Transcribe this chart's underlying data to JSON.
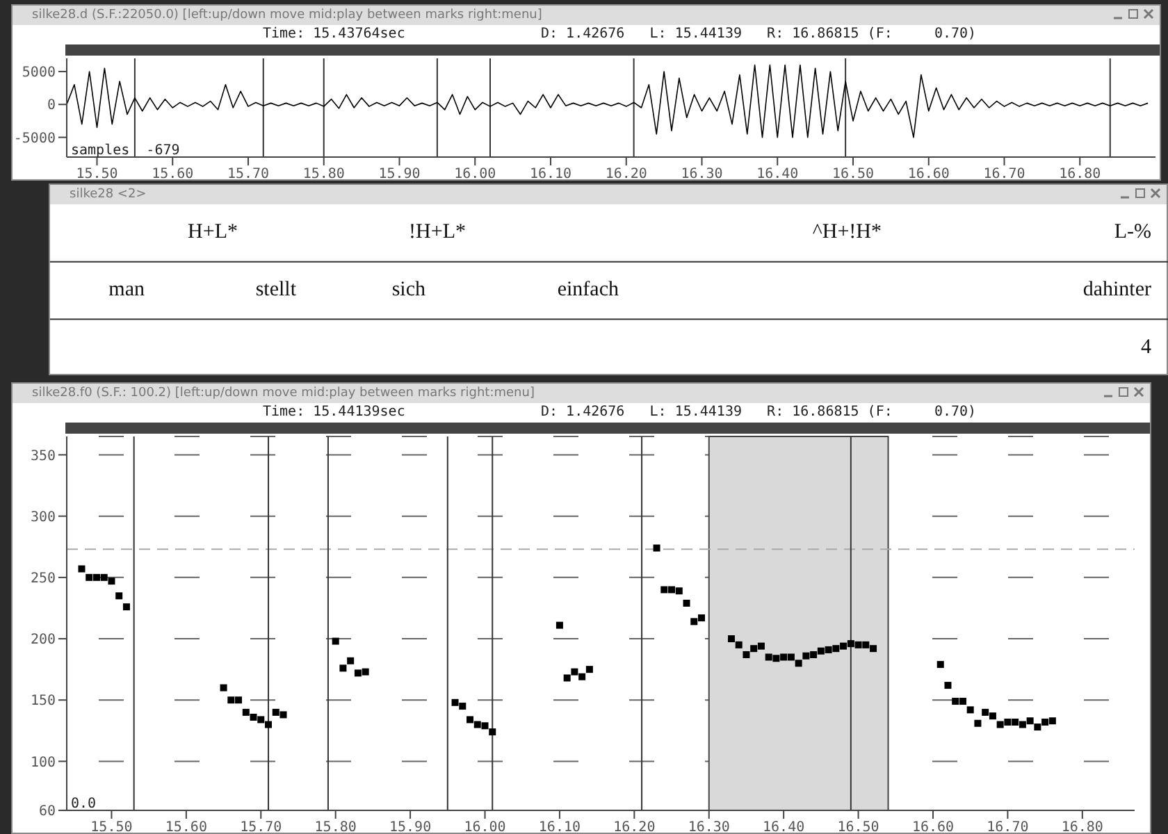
{
  "chart_data": [
    {
      "type": "line",
      "title": "silke28.d (S.F.:22050.0) [left:up/down move  mid:play between marks  right:menu]",
      "subtitle": "Time: 15.43764sec",
      "annotations": [
        "D: 1.42676   L: 15.44139   R: 16.86815 (F:     0.70)",
        "samples",
        "-679"
      ],
      "xlim": [
        15.46,
        16.9
      ],
      "ylim": [
        -8000,
        7000
      ],
      "yticks": [
        -5000,
        0,
        5000
      ],
      "xticks": [
        {
          "value": 15.5,
          "label": "15.50"
        },
        {
          "value": 15.6,
          "label": "15.60"
        },
        {
          "value": 15.7,
          "label": "15.70"
        },
        {
          "value": 15.8,
          "label": "15.80"
        },
        {
          "value": 15.9,
          "label": "15.90"
        },
        {
          "value": 16.0,
          "label": "16.00"
        },
        {
          "value": 16.1,
          "label": "16.10"
        },
        {
          "value": 16.2,
          "label": "16.20"
        },
        {
          "value": 16.3,
          "label": "16.30"
        },
        {
          "value": 16.4,
          "label": "16.40"
        },
        {
          "value": 16.5,
          "label": "16.50"
        },
        {
          "value": 16.6,
          "label": "16.60"
        },
        {
          "value": 16.7,
          "label": "16.70"
        },
        {
          "value": 16.8,
          "label": "16.80"
        }
      ],
      "color": "#000000",
      "marker": "none",
      "line_style": "solid",
      "ref_lines": [
        {
          "axis": "x",
          "value": 15.55
        },
        {
          "axis": "x",
          "value": 15.72
        },
        {
          "axis": "x",
          "value": 15.8
        },
        {
          "axis": "x",
          "value": 15.95
        },
        {
          "axis": "x",
          "value": 16.02
        },
        {
          "axis": "x",
          "value": 16.21
        },
        {
          "axis": "x",
          "value": 16.49
        },
        {
          "axis": "x",
          "value": 16.84
        }
      ],
      "x": [
        15.46,
        15.47,
        15.48,
        15.49,
        15.5,
        15.51,
        15.52,
        15.53,
        15.54,
        15.55,
        15.56,
        15.57,
        15.58,
        15.59,
        15.6,
        15.61,
        15.62,
        15.63,
        15.64,
        15.65,
        15.66,
        15.67,
        15.68,
        15.69,
        15.7,
        15.71,
        15.72,
        15.73,
        15.74,
        15.75,
        15.76,
        15.77,
        15.78,
        15.79,
        15.8,
        15.81,
        15.82,
        15.83,
        15.84,
        15.85,
        15.86,
        15.87,
        15.88,
        15.89,
        15.9,
        15.91,
        15.92,
        15.93,
        15.94,
        15.95,
        15.96,
        15.97,
        15.98,
        15.99,
        16.0,
        16.01,
        16.02,
        16.03,
        16.04,
        16.05,
        16.06,
        16.07,
        16.08,
        16.09,
        16.1,
        16.11,
        16.12,
        16.13,
        16.14,
        16.15,
        16.16,
        16.17,
        16.18,
        16.19,
        16.2,
        16.21,
        16.22,
        16.23,
        16.24,
        16.25,
        16.26,
        16.27,
        16.28,
        16.29,
        16.3,
        16.31,
        16.32,
        16.33,
        16.34,
        16.35,
        16.36,
        16.37,
        16.38,
        16.39,
        16.4,
        16.41,
        16.42,
        16.43,
        16.44,
        16.45,
        16.46,
        16.47,
        16.48,
        16.49,
        16.5,
        16.51,
        16.52,
        16.53,
        16.54,
        16.55,
        16.56,
        16.57,
        16.58,
        16.59,
        16.6,
        16.61,
        16.62,
        16.63,
        16.64,
        16.65,
        16.66,
        16.67,
        16.68,
        16.69,
        16.7,
        16.71,
        16.72,
        16.73,
        16.74,
        16.75,
        16.76,
        16.77,
        16.78,
        16.79,
        16.8,
        16.81,
        16.82,
        16.83,
        16.84,
        16.85,
        16.86,
        16.87,
        16.88,
        16.89
      ],
      "values": [
        0,
        3000,
        -3000,
        5000,
        -3500,
        5500,
        -3000,
        3500,
        -1500,
        1000,
        -1000,
        1000,
        -800,
        800,
        -500,
        300,
        -300,
        300,
        -300,
        500,
        -800,
        3000,
        -500,
        2000,
        -300,
        300,
        -200,
        200,
        -200,
        200,
        -200,
        200,
        -200,
        200,
        -300,
        800,
        -600,
        1500,
        -500,
        1000,
        -300,
        300,
        -200,
        300,
        -200,
        1000,
        -200,
        200,
        -200,
        300,
        -800,
        1500,
        -1500,
        1200,
        -800,
        300,
        -300,
        300,
        -300,
        200,
        -1500,
        500,
        -500,
        1500,
        -500,
        1500,
        -200,
        200,
        -200,
        200,
        -200,
        200,
        -200,
        200,
        -300,
        300,
        -500,
        3000,
        -4500,
        5000,
        -4000,
        4000,
        -2000,
        1500,
        -1000,
        1000,
        -1000,
        2000,
        -3000,
        4500,
        -4500,
        6000,
        -5000,
        6000,
        -5000,
        6000,
        -5000,
        6000,
        -5000,
        5500,
        -4500,
        5000,
        -4000,
        3500,
        -2500,
        2000,
        -1000,
        1000,
        -1000,
        800,
        -1500,
        500,
        -5000,
        4500,
        -1000,
        2500,
        -800,
        1500,
        -800,
        1000,
        -500,
        800,
        -500,
        500,
        -300,
        300,
        -300,
        200,
        -200,
        200,
        -200,
        200,
        -200,
        200,
        -200,
        200,
        -200,
        200,
        -200,
        200,
        -200,
        200,
        -200,
        200
      ]
    },
    {
      "type": "other",
      "title": "silke28 <2>",
      "annotations": [
        "H+L*",
        "!H+L*",
        "^H+!H*",
        "L-%",
        "man",
        "stellt",
        "sich",
        "einfach",
        "dahinter",
        "4"
      ]
    },
    {
      "type": "scatter",
      "title": "silke28.f0 (S.F.:  100.2) [left:up/down move  mid:play between marks  right:menu]",
      "subtitle": "Time: 15.44139sec",
      "annotations": [
        "D: 1.42676   L: 15.44139   R: 16.86815 (F:     0.70)",
        "0.0"
      ],
      "xlim": [
        15.44,
        16.87
      ],
      "ylim": [
        60,
        365
      ],
      "yticks": [
        60,
        100,
        150,
        200,
        250,
        300,
        350
      ],
      "xticks": [
        {
          "value": 15.5,
          "label": "15.50"
        },
        {
          "value": 15.6,
          "label": "15.60"
        },
        {
          "value": 15.7,
          "label": "15.70"
        },
        {
          "value": 15.8,
          "label": "15.80"
        },
        {
          "value": 15.9,
          "label": "15.90"
        },
        {
          "value": 16.0,
          "label": "16.00"
        },
        {
          "value": 16.1,
          "label": "16.10"
        },
        {
          "value": 16.2,
          "label": "16.20"
        },
        {
          "value": 16.3,
          "label": "16.30"
        },
        {
          "value": 16.4,
          "label": "16.40"
        },
        {
          "value": 16.5,
          "label": "16.50"
        },
        {
          "value": 16.6,
          "label": "16.60"
        },
        {
          "value": 16.7,
          "label": "16.70"
        },
        {
          "value": 16.8,
          "label": "16.80"
        }
      ],
      "grid": "y",
      "color": "#000000",
      "marker": "square",
      "ref_lines": [
        {
          "axis": "y",
          "value": 273,
          "color": "#aaaaaa",
          "line_style": "dashed"
        },
        {
          "axis": "x",
          "value": 15.53
        },
        {
          "axis": "x",
          "value": 15.71
        },
        {
          "axis": "x",
          "value": 15.79
        },
        {
          "axis": "x",
          "value": 15.95
        },
        {
          "axis": "x",
          "value": 16.01
        },
        {
          "axis": "x",
          "value": 16.21
        },
        {
          "axis": "x",
          "value": 16.49
        }
      ],
      "bands": [
        {
          "axis": "x",
          "from": 16.3,
          "to": 16.54,
          "color": "#d9d9d9"
        }
      ],
      "x": [
        15.46,
        15.47,
        15.48,
        15.49,
        15.5,
        15.51,
        15.52,
        15.65,
        15.66,
        15.67,
        15.68,
        15.69,
        15.7,
        15.71,
        15.72,
        15.73,
        15.8,
        15.81,
        15.82,
        15.83,
        15.84,
        15.96,
        15.97,
        15.98,
        15.99,
        16.0,
        16.01,
        16.1,
        16.11,
        16.12,
        16.13,
        16.14,
        16.23,
        16.24,
        16.25,
        16.26,
        16.27,
        16.28,
        16.29,
        16.33,
        16.34,
        16.35,
        16.36,
        16.37,
        16.38,
        16.39,
        16.4,
        16.41,
        16.42,
        16.43,
        16.44,
        16.45,
        16.46,
        16.47,
        16.48,
        16.49,
        16.5,
        16.51,
        16.52,
        16.61,
        16.62,
        16.63,
        16.64,
        16.65,
        16.66,
        16.67,
        16.68,
        16.69,
        16.7,
        16.71,
        16.72,
        16.73,
        16.74,
        16.75,
        16.76
      ],
      "values": [
        257,
        250,
        250,
        250,
        247,
        235,
        226,
        160,
        150,
        150,
        140,
        136,
        134,
        130,
        140,
        138,
        198,
        176,
        182,
        172,
        173,
        148,
        145,
        134,
        130,
        129,
        124,
        211,
        168,
        173,
        169,
        175,
        274,
        240,
        240,
        239,
        229,
        214,
        217,
        200,
        195,
        187,
        192,
        194,
        185,
        184,
        185,
        185,
        180,
        186,
        187,
        190,
        191,
        192,
        194,
        196,
        195,
        195,
        192,
        179,
        162,
        149,
        149,
        142,
        131,
        140,
        137,
        130,
        132,
        132,
        130,
        133,
        128,
        132,
        133
      ]
    }
  ]
}
